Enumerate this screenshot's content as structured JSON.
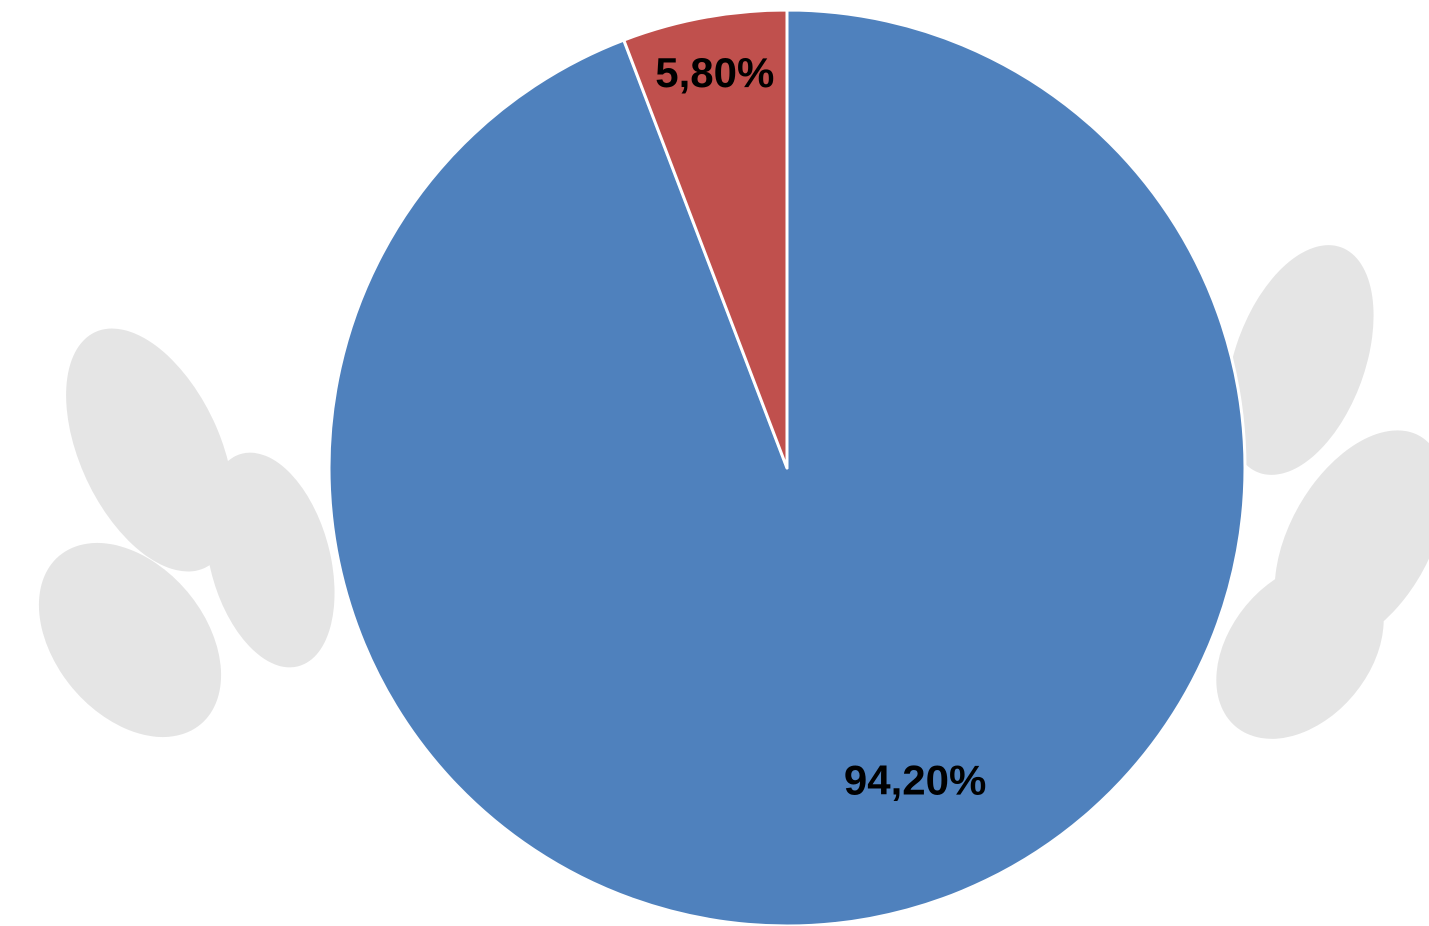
{
  "chart_data": {
    "type": "pie",
    "values": [
      94.2,
      5.8
    ],
    "value_labels": [
      "94,20%",
      "5,80%"
    ],
    "colors": [
      "#4f81bd",
      "#c0504d"
    ]
  }
}
